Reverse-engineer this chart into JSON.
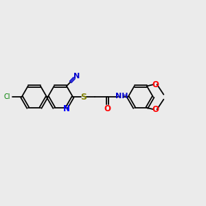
{
  "bg_color": "#ebebeb",
  "bond_color": "#000000",
  "nitrogen_color": "#0000ff",
  "sulfur_color": "#808000",
  "oxygen_color": "#ff0000",
  "chlorine_color": "#008000",
  "cn_color": "#0000cd",
  "nh_color": "#0000cd",
  "figsize": [
    3.0,
    3.0
  ],
  "dpi": 100,
  "xlim": [
    0,
    10
  ],
  "ylim": [
    0,
    10
  ]
}
